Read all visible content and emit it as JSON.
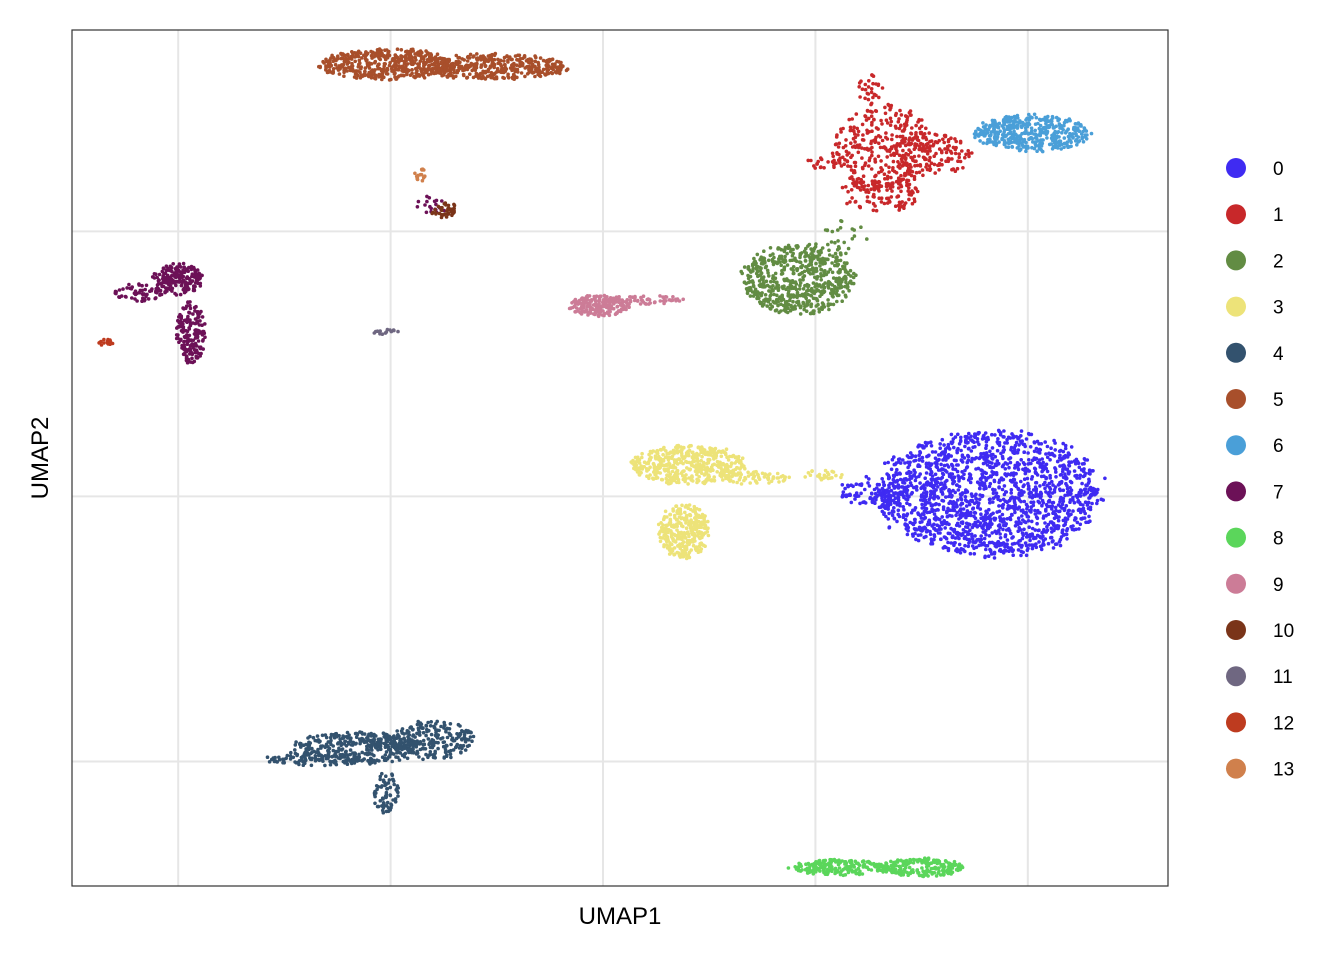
{
  "chart_data": {
    "type": "scatter",
    "xlabel": "UMAP1",
    "ylabel": "UMAP2",
    "x_tick_labels": [],
    "y_tick_labels": [],
    "xlim": [
      -10.5,
      15.3
    ],
    "ylim": [
      -14.7,
      17.6
    ],
    "grid": true,
    "legend_position": "right",
    "legend": [
      {
        "label": "0",
        "color": "#3F2BF2"
      },
      {
        "label": "1",
        "color": "#C8282A"
      },
      {
        "label": "2",
        "color": "#628C43"
      },
      {
        "label": "3",
        "color": "#EDE379"
      },
      {
        "label": "4",
        "color": "#33526E"
      },
      {
        "label": "5",
        "color": "#A84F2B"
      },
      {
        "label": "6",
        "color": "#4A9FD8"
      },
      {
        "label": "7",
        "color": "#6C1157"
      },
      {
        "label": "8",
        "color": "#5BD65B"
      },
      {
        "label": "9",
        "color": "#CC7C97"
      },
      {
        "label": "10",
        "color": "#7A3419"
      },
      {
        "label": "11",
        "color": "#6F6781"
      },
      {
        "label": "12",
        "color": "#BE3B1F"
      },
      {
        "label": "13",
        "color": "#D0804C"
      }
    ],
    "series": [
      {
        "cluster": "0",
        "color": "#3F2BF2",
        "blobs": [
          {
            "cx": 11.1,
            "cy": 0.1,
            "rx": 2.7,
            "ry": 2.4,
            "n": 1700
          },
          {
            "cx": 8.4,
            "cy": 0.2,
            "rx": 0.9,
            "ry": 0.55,
            "n": 90
          }
        ]
      },
      {
        "cluster": "1",
        "color": "#C8282A",
        "blobs": [
          {
            "cx": 8.6,
            "cy": 13.2,
            "rx": 1.2,
            "ry": 1.6,
            "n": 300
          },
          {
            "cx": 9.7,
            "cy": 12.9,
            "rx": 1.0,
            "ry": 0.85,
            "n": 150
          },
          {
            "cx": 8.5,
            "cy": 11.4,
            "rx": 1.0,
            "ry": 0.7,
            "n": 110
          },
          {
            "cx": 7.3,
            "cy": 12.6,
            "rx": 0.5,
            "ry": 0.3,
            "n": 25
          },
          {
            "cx": 8.3,
            "cy": 15.4,
            "rx": 0.3,
            "ry": 0.6,
            "n": 30
          }
        ]
      },
      {
        "cluster": "2",
        "color": "#628C43",
        "blobs": [
          {
            "cx": 6.6,
            "cy": 8.2,
            "rx": 1.35,
            "ry": 1.35,
            "n": 600
          },
          {
            "cx": 7.7,
            "cy": 9.8,
            "rx": 0.5,
            "ry": 0.7,
            "n": 25
          }
        ]
      },
      {
        "cluster": "3",
        "color": "#EDE379",
        "blobs": [
          {
            "cx": 4.0,
            "cy": 1.2,
            "rx": 1.4,
            "ry": 0.75,
            "n": 450
          },
          {
            "cx": 3.9,
            "cy": -1.3,
            "rx": 0.6,
            "ry": 1.05,
            "n": 300
          },
          {
            "cx": 5.6,
            "cy": 0.7,
            "rx": 0.8,
            "ry": 0.25,
            "n": 60
          },
          {
            "cx": 7.2,
            "cy": 0.8,
            "rx": 0.5,
            "ry": 0.2,
            "n": 25
          }
        ]
      },
      {
        "cluster": "4",
        "color": "#33526E",
        "blobs": [
          {
            "cx": -3.8,
            "cy": -9.5,
            "rx": 1.6,
            "ry": 0.6,
            "n": 380
          },
          {
            "cx": -2.0,
            "cy": -9.2,
            "rx": 1.0,
            "ry": 0.75,
            "n": 220
          },
          {
            "cx": -3.1,
            "cy": -11.2,
            "rx": 0.3,
            "ry": 0.8,
            "n": 70
          },
          {
            "cx": -4.8,
            "cy": -9.9,
            "rx": 1.2,
            "ry": 0.25,
            "n": 80
          }
        ]
      },
      {
        "cluster": "5",
        "color": "#A84F2B",
        "blobs": [
          {
            "cx": -3.1,
            "cy": 16.3,
            "rx": 1.6,
            "ry": 0.6,
            "n": 480
          },
          {
            "cx": -0.6,
            "cy": 16.2,
            "rx": 1.8,
            "ry": 0.5,
            "n": 380
          }
        ]
      },
      {
        "cluster": "6",
        "color": "#4A9FD8",
        "blobs": [
          {
            "cx": 12.1,
            "cy": 13.7,
            "rx": 1.4,
            "ry": 0.7,
            "n": 420
          }
        ]
      },
      {
        "cluster": "7",
        "color": "#6C1157",
        "blobs": [
          {
            "cx": -8.0,
            "cy": 8.2,
            "rx": 0.6,
            "ry": 0.6,
            "n": 180
          },
          {
            "cx": -7.7,
            "cy": 6.2,
            "rx": 0.35,
            "ry": 1.2,
            "n": 180
          },
          {
            "cx": -8.9,
            "cy": 7.7,
            "rx": 0.6,
            "ry": 0.35,
            "n": 60
          },
          {
            "cx": -2.0,
            "cy": 11.0,
            "rx": 0.4,
            "ry": 0.35,
            "n": 20
          }
        ]
      },
      {
        "cluster": "8",
        "color": "#5BD65B",
        "blobs": [
          {
            "cx": 7.6,
            "cy": -14.0,
            "rx": 1.2,
            "ry": 0.3,
            "n": 200
          },
          {
            "cx": 9.5,
            "cy": -14.0,
            "rx": 1.0,
            "ry": 0.35,
            "n": 200
          }
        ]
      },
      {
        "cluster": "9",
        "color": "#CC7C97",
        "blobs": [
          {
            "cx": 1.9,
            "cy": 7.2,
            "rx": 0.7,
            "ry": 0.4,
            "n": 200
          },
          {
            "cx": 3.0,
            "cy": 7.4,
            "rx": 0.9,
            "ry": 0.2,
            "n": 60
          }
        ]
      },
      {
        "cluster": "10",
        "color": "#7A3419",
        "blobs": [
          {
            "cx": -1.7,
            "cy": 10.8,
            "rx": 0.35,
            "ry": 0.3,
            "n": 40
          }
        ]
      },
      {
        "cluster": "11",
        "color": "#6F6781",
        "blobs": [
          {
            "cx": -3.1,
            "cy": 6.2,
            "rx": 0.35,
            "ry": 0.1,
            "n": 15
          }
        ]
      },
      {
        "cluster": "12",
        "color": "#BE3B1F",
        "blobs": [
          {
            "cx": -9.7,
            "cy": 5.8,
            "rx": 0.2,
            "ry": 0.15,
            "n": 18
          }
        ]
      },
      {
        "cluster": "13",
        "color": "#D0804C",
        "blobs": [
          {
            "cx": -2.3,
            "cy": 12.2,
            "rx": 0.15,
            "ry": 0.35,
            "n": 15
          }
        ]
      }
    ]
  }
}
